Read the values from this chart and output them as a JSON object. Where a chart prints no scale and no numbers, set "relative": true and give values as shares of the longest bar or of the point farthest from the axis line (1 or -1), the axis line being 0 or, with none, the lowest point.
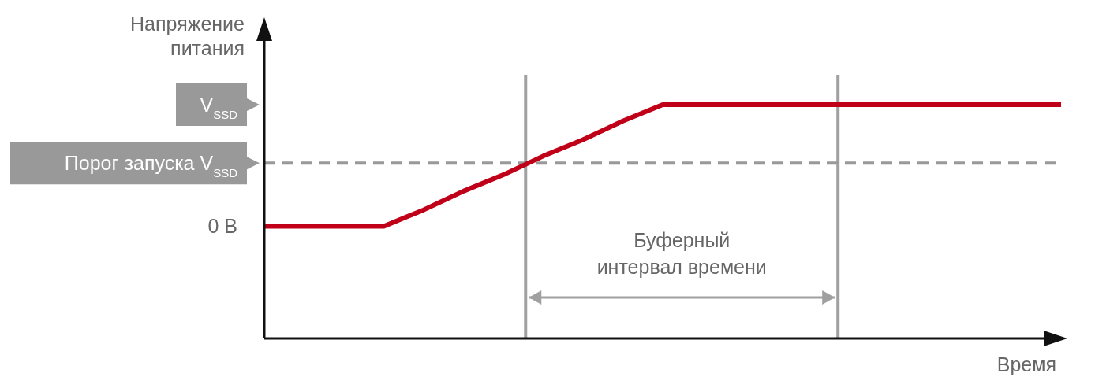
{
  "chart_data": {
    "type": "line",
    "ylabel": "Напряжение питания",
    "xlabel": "Время",
    "relative": true,
    "categories": [
      null,
      null,
      null,
      null,
      null,
      null,
      null,
      null,
      null,
      null,
      null,
      null,
      null,
      null,
      null,
      null,
      null,
      null,
      null,
      null,
      null
    ],
    "series": [
      {
        "color": "#c00018",
        "values": [
          0.48,
          0.48,
          0.48,
          0.48,
          0.55,
          0.63,
          0.7,
          0.78,
          0.85,
          0.93,
          1,
          1,
          1,
          1,
          1,
          1,
          1,
          1,
          1,
          1,
          1
        ]
      }
    ],
    "marker": "none",
    "line_style": "solid",
    "ref_lines": [
      {
        "axis": "y",
        "value": 0.75,
        "label": "Порог запуска V$_{SSD}$",
        "color": "#999999",
        "line_style": "dashed"
      }
    ],
    "annotations": [
      "V$_{SSD}$",
      "0 В",
      "Буферный интервал времени"
    ]
  }
}
